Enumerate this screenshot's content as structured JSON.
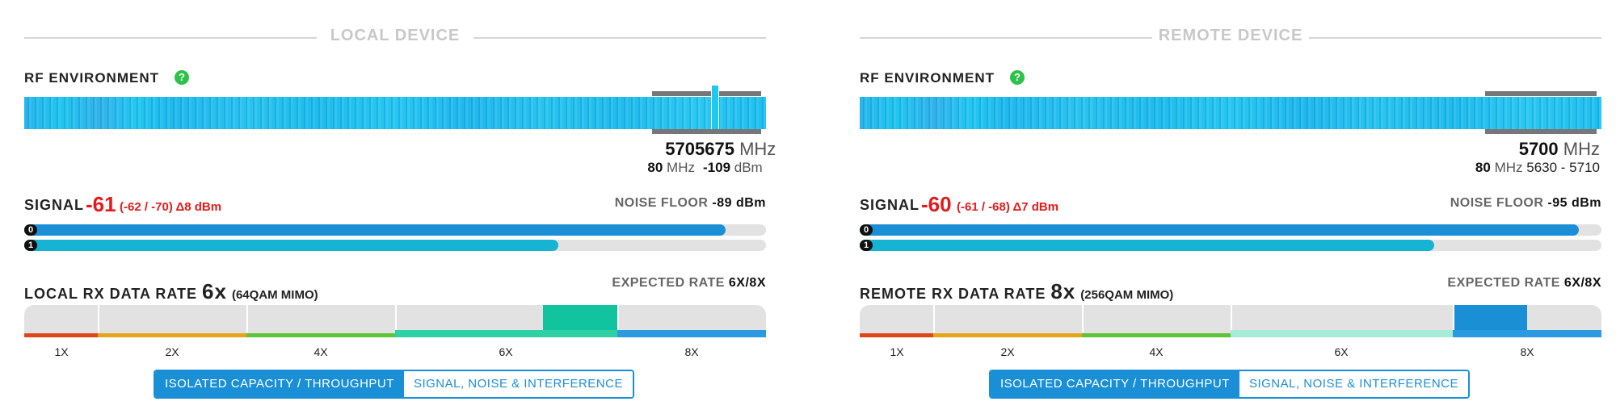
{
  "local": {
    "header": "LOCAL DEVICE",
    "rf_title": "RF ENVIRONMENT",
    "help_glyph": "?",
    "channel_width": "570",
    "channel_width_mhz": "80",
    "center_freq": "5675",
    "mhz": "MHz",
    "noise_at_freq": "-109",
    "dbm": "dBm",
    "signal_label": "SIGNAL",
    "signal_value": "-61",
    "signal_detail": "(-62 / -70) Δ8 dBm",
    "noise_floor_label": "NOISE FLOOR",
    "noise_floor_value": "-89 dBm",
    "chains": [
      {
        "label": "0",
        "level": 0.945
      },
      {
        "label": "1",
        "level": 0.72
      }
    ],
    "rate_label": "LOCAL RX DATA RATE",
    "rate_value": "6x",
    "rate_detail": "(64QAM MIMO)",
    "expected_label": "EXPECTED RATE",
    "expected_value": "6X/8X",
    "rate_ticks": [
      "1X",
      "2X",
      "4X",
      "6X",
      "8X"
    ],
    "btn_capacity": "ISOLATED CAPACITY / THROUGHPUT",
    "btn_signal": "SIGNAL, NOISE & INTERFERENCE"
  },
  "remote": {
    "header": "REMOTE DEVICE",
    "rf_title": "RF ENVIRONMENT",
    "help_glyph": "?",
    "center_freq": "5700",
    "mhz": "MHz",
    "channel_width_mhz": "80",
    "freq_range": "5630 - 5710",
    "signal_label": "SIGNAL",
    "signal_value": "-60",
    "signal_detail": "(-61 / -68) Δ7 dBm",
    "noise_floor_label": "NOISE FLOOR",
    "noise_floor_value": "-95 dBm",
    "chains": [
      {
        "label": "0",
        "level": 0.97
      },
      {
        "label": "1",
        "level": 0.775
      }
    ],
    "rate_label": "REMOTE RX DATA RATE",
    "rate_value": "8x",
    "rate_detail": "(256QAM MIMO)",
    "expected_label": "EXPECTED RATE",
    "expected_value": "6X/8X",
    "rate_ticks": [
      "1X",
      "2X",
      "4X",
      "6X",
      "8X"
    ],
    "btn_capacity": "ISOLATED CAPACITY / THROUGHPUT",
    "btn_signal": "SIGNAL, NOISE & INTERFERENCE"
  },
  "colors": {
    "accent": "#1a8fd6",
    "signal_red": "#e31b1b",
    "help_green": "#2ec24a",
    "bar_chain0": "#1a8fd6",
    "bar_chain1": "#17b3d3",
    "rate_1x": "#e0461c",
    "rate_2x": "#e6a417",
    "rate_4x": "#5cc436",
    "rate_6x": "#2ed0a6",
    "rate_8x": "#2a9be0",
    "highlight_local": "#12c3a0",
    "highlight_remote": "#1a8fd6"
  }
}
